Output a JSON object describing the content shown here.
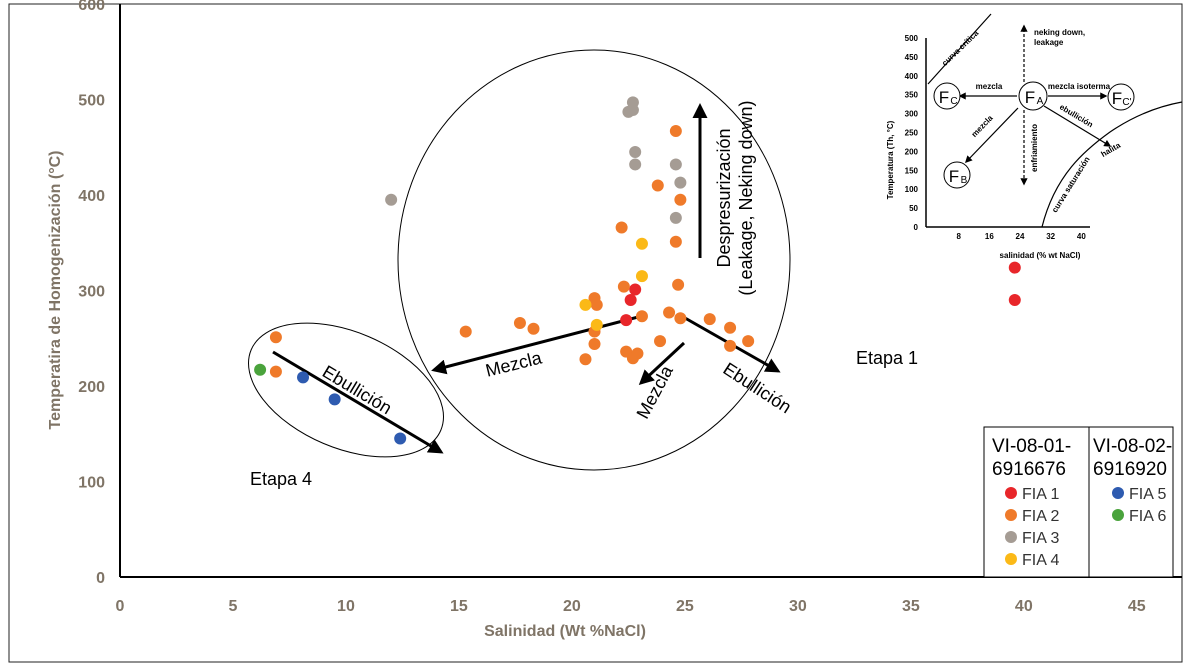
{
  "chart_data": {
    "type": "scatter",
    "xlabel": "Salinidad (Wt %NaCl)",
    "ylabel": "Temperatira de Homogenización (°C)",
    "xlim": [
      0,
      47
    ],
    "ylim": [
      0,
      600
    ],
    "x_ticks": [
      "0",
      "5",
      "10",
      "15",
      "20",
      "25",
      "30",
      "35",
      "40",
      "45"
    ],
    "y_ticks": [
      "0",
      "100",
      "200",
      "300",
      "400",
      "500",
      "600"
    ],
    "legend": {
      "groups": [
        {
          "header_line1": "VI-08-01-",
          "header_line2": "6916676",
          "entries": [
            "FIA 1",
            "FIA 2",
            "FIA 3",
            "FIA 4"
          ]
        },
        {
          "header_line1": "VI-08-02-",
          "header_line2": "6916920",
          "entries": [
            "FIA 5",
            "FIA 6"
          ]
        }
      ]
    },
    "series": [
      {
        "name": "FIA 1",
        "color": "#e8262a",
        "points": [
          [
            22.4,
            269
          ],
          [
            22.6,
            290
          ],
          [
            22.8,
            301
          ],
          [
            39.6,
            324
          ],
          [
            39.6,
            290
          ]
        ]
      },
      {
        "name": "FIA 2",
        "color": "#ef7a2a",
        "points": [
          [
            6.9,
            251
          ],
          [
            6.9,
            215
          ],
          [
            15.3,
            257
          ],
          [
            17.7,
            266
          ],
          [
            18.3,
            260
          ],
          [
            20.6,
            228
          ],
          [
            21,
            292
          ],
          [
            21.1,
            285
          ],
          [
            21,
            257
          ],
          [
            21,
            244
          ],
          [
            22.2,
            366
          ],
          [
            22.3,
            304
          ],
          [
            22.4,
            236
          ],
          [
            22.7,
            229
          ],
          [
            22.9,
            234
          ],
          [
            23.1,
            273
          ],
          [
            23.8,
            410
          ],
          [
            23.9,
            247
          ],
          [
            24.3,
            277
          ],
          [
            24.6,
            467
          ],
          [
            24.6,
            351
          ],
          [
            24.7,
            306
          ],
          [
            24.8,
            271
          ],
          [
            24.8,
            395
          ],
          [
            26.1,
            270
          ],
          [
            27,
            261
          ],
          [
            27,
            242
          ],
          [
            27.8,
            247
          ]
        ]
      },
      {
        "name": "FIA 3",
        "color": "#a59c94",
        "points": [
          [
            12,
            395
          ],
          [
            22.5,
            487
          ],
          [
            22.7,
            497
          ],
          [
            22.8,
            445
          ],
          [
            22.8,
            432
          ],
          [
            24.6,
            432
          ],
          [
            24.6,
            376
          ],
          [
            24.8,
            413
          ],
          [
            22.7,
            489
          ]
        ]
      },
      {
        "name": "FIA 4",
        "color": "#fbb917",
        "points": [
          [
            20.6,
            285
          ],
          [
            21.1,
            264
          ],
          [
            23.1,
            349
          ],
          [
            23.1,
            315
          ]
        ]
      },
      {
        "name": "FIA 5",
        "color": "#2e5bb0",
        "points": [
          [
            8.1,
            209
          ],
          [
            9.5,
            186
          ],
          [
            12.4,
            145
          ]
        ]
      },
      {
        "name": "FIA 6",
        "color": "#4aa33c",
        "points": [
          [
            6.2,
            217
          ]
        ]
      }
    ],
    "annotations": {
      "despresurizacion": "Despresurización",
      "leakage": "(Leakage, Neking down)",
      "mezcla_left": "Mezcla",
      "mezcla_down": "Mezcla",
      "ebullicion_right": "Ebullición",
      "ebullicion_left": "Ebullición",
      "etapa1": "Etapa 1",
      "etapa4": "Etapa 4"
    },
    "inset": {
      "ylabel": "Temperatura (Th, °C)",
      "xlabel": "salinidad (% wt NaCl)",
      "y_ticks": [
        "0",
        "50",
        "100",
        "150",
        "200",
        "250",
        "300",
        "350",
        "400",
        "450",
        "500"
      ],
      "x_ticks": [
        "8",
        "16",
        "24",
        "32",
        "40"
      ],
      "labels": {
        "curva_critica": "curva crítica",
        "neking": "neking down,",
        "leakage": "leakage",
        "mezcla": "mezcla",
        "mezcla_isoterma": "mezcla isoterma",
        "ebullicion": "ebullición",
        "mezcla_diag": "mezcla",
        "enfriamiento": "enfriamiento",
        "halita": "halita",
        "curva_saturacion": "curva saturación"
      },
      "nodes": {
        "fa_main": "F",
        "fa_sub": "A",
        "fb_main": "F",
        "fb_sub": "B",
        "fc_main": "F",
        "fc_sub": "C",
        "fcp_main": "F",
        "fcp_sub": "C'"
      }
    }
  }
}
